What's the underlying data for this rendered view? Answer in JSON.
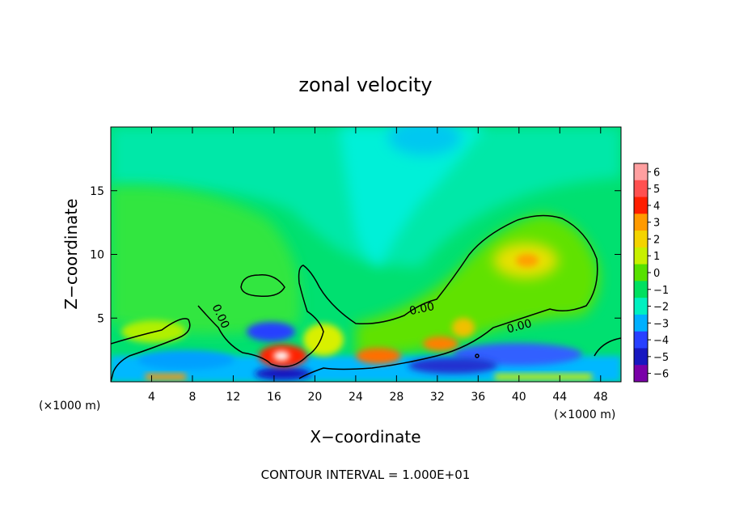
{
  "chart_data": {
    "type": "heatmap",
    "title": "zonal velocity",
    "xlabel": "X−coordinate",
    "ylabel": "Z−coordinate",
    "x_unit": "(×1000 m)",
    "x_unit_right": "(×1000 m)",
    "footer": "CONTOUR INTERVAL = 1.000E+01",
    "xlim": [
      0,
      50
    ],
    "ylim": [
      0,
      20
    ],
    "x_ticks": [
      4,
      8,
      12,
      16,
      20,
      24,
      28,
      32,
      36,
      40,
      44,
      48
    ],
    "x_tick_labels": [
      "4",
      "8",
      "12",
      "16",
      "20",
      "24",
      "28",
      "32",
      "36",
      "40",
      "44",
      "48"
    ],
    "y_ticks": [
      5,
      10,
      15
    ],
    "y_tick_labels": [
      "5",
      "10",
      "15"
    ],
    "contour_labels": [
      "0.00",
      "0.00",
      "0.00"
    ],
    "colorbar": {
      "levels": [
        6,
        5,
        4,
        3,
        2,
        1,
        0,
        -1,
        -2,
        -3,
        -4,
        -5,
        -6
      ],
      "labels": [
        "6",
        "5",
        "4",
        "3",
        "2",
        "1",
        "0",
        "−1",
        "−2",
        "−3",
        "−4",
        "−5",
        "−6"
      ],
      "colors": [
        "#ff9fa0",
        "#ff5050",
        "#ff1e00",
        "#ff9a00",
        "#f4d400",
        "#c8f000",
        "#57e100",
        "#00e060",
        "#00f0c0",
        "#00b0ff",
        "#2840ff",
        "#1818c0",
        "#7a00a8"
      ]
    },
    "anomalies": [
      {
        "x": 17,
        "z": 2.2,
        "value": 6
      },
      {
        "x": 26,
        "z": 2.3,
        "value": 3
      },
      {
        "x": 32,
        "z": 3.0,
        "value": 3
      },
      {
        "x": 35,
        "z": 4.5,
        "value": 2
      },
      {
        "x": 40,
        "z": 9.5,
        "value": 2
      },
      {
        "x": 5,
        "z": 4.0,
        "value": 1
      },
      {
        "x": 22,
        "z": 4.0,
        "value": 1
      },
      {
        "x": 15,
        "z": 4.2,
        "value": -4
      },
      {
        "x": 40,
        "z": 2.0,
        "value": -3
      },
      {
        "x": 17,
        "z": 0.5,
        "value": -5
      },
      {
        "x": 33,
        "z": 1.0,
        "value": -5
      },
      {
        "x": 29,
        "z": 15,
        "value": -2
      },
      {
        "x": 26,
        "z": 19.5,
        "value": -3
      }
    ]
  }
}
